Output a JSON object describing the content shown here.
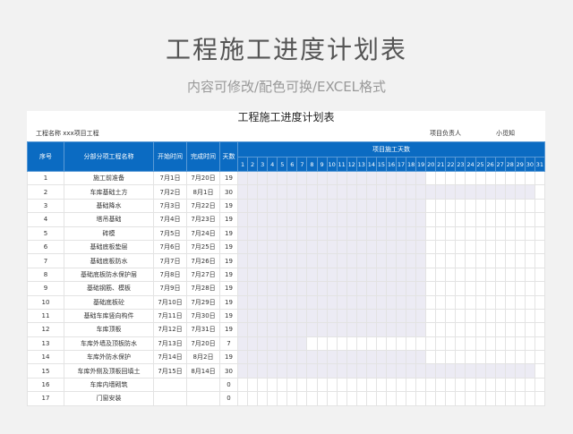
{
  "hero": {
    "title": "工程施工进度计划表",
    "subtitle": "内容可修改/配色可换/EXCEL格式"
  },
  "sheet": {
    "title": "工程施工进度计划表",
    "project_label": "工程名称 xxx项目工程",
    "manager_label": "项目负责人",
    "manager_name": "小觅知"
  },
  "headers": {
    "no": "序号",
    "name": "分部分项工程名称",
    "start": "开始时间",
    "end": "完成时间",
    "days": "天数",
    "timeline": "项目施工天数"
  },
  "timeline_days": [
    1,
    2,
    3,
    4,
    5,
    6,
    7,
    8,
    9,
    10,
    11,
    12,
    13,
    14,
    15,
    16,
    17,
    18,
    19,
    20,
    21,
    22,
    23,
    24,
    25,
    26,
    27,
    28,
    29,
    30,
    31
  ],
  "colors": {
    "header": "#0b6bc2",
    "bar": "#ecebf4"
  },
  "rows": [
    {
      "no": "1",
      "name": "施工前准备",
      "start": "7月1日",
      "end": "7月20日",
      "days": "19"
    },
    {
      "no": "2",
      "name": "车库基础土方",
      "start": "7月2日",
      "end": "8月1日",
      "days": "30"
    },
    {
      "no": "3",
      "name": "基础降水",
      "start": "7月3日",
      "end": "7月22日",
      "days": "19"
    },
    {
      "no": "4",
      "name": "塔吊基础",
      "start": "7月4日",
      "end": "7月23日",
      "days": "19"
    },
    {
      "no": "5",
      "name": "砖模",
      "start": "7月5日",
      "end": "7月24日",
      "days": "19"
    },
    {
      "no": "6",
      "name": "基础底板垫层",
      "start": "7月6日",
      "end": "7月25日",
      "days": "19"
    },
    {
      "no": "7",
      "name": "基础底板防水",
      "start": "7月7日",
      "end": "7月26日",
      "days": "19"
    },
    {
      "no": "8",
      "name": "基础底板防水保护层",
      "start": "7月8日",
      "end": "7月27日",
      "days": "19"
    },
    {
      "no": "9",
      "name": "基础钢筋、模板",
      "start": "7月9日",
      "end": "7月28日",
      "days": "19"
    },
    {
      "no": "10",
      "name": "基础底板砼",
      "start": "7月10日",
      "end": "7月29日",
      "days": "19"
    },
    {
      "no": "11",
      "name": "基础车库竖向构件",
      "start": "7月11日",
      "end": "7月30日",
      "days": "19"
    },
    {
      "no": "12",
      "name": "车库顶板",
      "start": "7月12日",
      "end": "7月31日",
      "days": "19"
    },
    {
      "no": "13",
      "name": "车库外墙及顶板防水",
      "start": "7月13日",
      "end": "7月20日",
      "days": "7"
    },
    {
      "no": "14",
      "name": "车库外防水保护",
      "start": "7月14日",
      "end": "8月2日",
      "days": "19"
    },
    {
      "no": "15",
      "name": "车库外侧及顶板回填土",
      "start": "7月15日",
      "end": "8月14日",
      "days": "30"
    },
    {
      "no": "16",
      "name": "车库内墙砌筑",
      "start": "",
      "end": "",
      "days": "0"
    },
    {
      "no": "17",
      "name": "门窗安装",
      "start": "",
      "end": "",
      "days": "0"
    }
  ]
}
